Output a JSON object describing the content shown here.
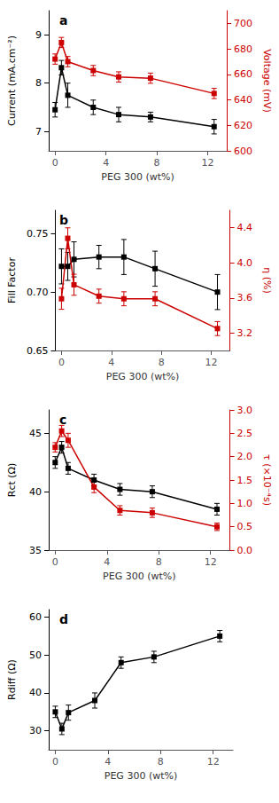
{
  "chart_data": [
    {
      "type": "line",
      "title": "a",
      "x": [
        0,
        0.5,
        1,
        3,
        5,
        7.5,
        12.5
      ],
      "xlabel": "PEG 300 (wt%)",
      "xlim": [
        -0.5,
        13.5
      ],
      "xticks": [
        0,
        4,
        8,
        12
      ],
      "ylabel": "Current (mA.cm⁻²)",
      "ylim": [
        6.6,
        9.5
      ],
      "yticks": [
        7,
        8,
        9
      ],
      "y2label": "Voltage (mV)",
      "y2lim": [
        600,
        710
      ],
      "y2ticks": [
        600,
        620,
        640,
        660,
        680,
        700
      ],
      "grid": false,
      "series": [
        {
          "color": "#000000",
          "marker": "square",
          "values": [
            7.45,
            8.32,
            7.75,
            7.5,
            7.35,
            7.3,
            7.1
          ],
          "yerr": [
            0.15,
            0.15,
            0.25,
            0.15,
            0.15,
            0.1,
            0.15
          ]
        },
        {
          "color": "#cc0000",
          "marker": "square",
          "axis": "y2",
          "values": [
            672,
            685,
            670,
            663,
            658,
            657,
            645
          ],
          "yerr": [
            4,
            4,
            4,
            4,
            4,
            4,
            4
          ]
        }
      ]
    },
    {
      "type": "line",
      "title": "b",
      "x": [
        0,
        0.5,
        1,
        3,
        5,
        7.5,
        12.5
      ],
      "xlabel": "PEG 300 (wt%)",
      "xlim": [
        -0.5,
        13.5
      ],
      "xticks": [
        0,
        4,
        8,
        12
      ],
      "ylabel": "Fill Factor",
      "ylim": [
        0.65,
        0.77
      ],
      "yticks": [
        0.65,
        {
          "value": 0.7,
          "label": "0.70"
        },
        0.75
      ],
      "y2label": "η (%)",
      "y2lim": [
        3.0,
        4.6
      ],
      "y2ticks": [
        3.2,
        3.6,
        {
          "value": 4.0,
          "label": "4.0"
        },
        4.4
      ],
      "grid": false,
      "series": [
        {
          "color": "#000000",
          "marker": "square",
          "values": [
            0.722,
            0.722,
            0.728,
            0.73,
            0.73,
            0.72,
            0.7
          ],
          "yerr": [
            0.015,
            0.012,
            0.015,
            0.01,
            0.015,
            0.015,
            0.015
          ]
        },
        {
          "color": "#cc0000",
          "marker": "square",
          "axis": "y2",
          "values": [
            3.59,
            4.28,
            3.75,
            3.62,
            3.59,
            3.59,
            3.25
          ],
          "yerr": [
            0.12,
            0.12,
            0.12,
            0.08,
            0.08,
            0.08,
            0.08
          ]
        }
      ]
    },
    {
      "type": "line",
      "title": "c",
      "x": [
        0,
        0.5,
        1,
        3,
        5,
        7.5,
        12.5
      ],
      "xlabel": "PEG 300 (wt%)",
      "xlim": [
        -0.5,
        13.5
      ],
      "xticks": [
        0,
        4,
        8,
        12
      ],
      "ylabel": "Rct (Ω)",
      "ylim": [
        35,
        47
      ],
      "yticks": [
        35,
        40,
        45
      ],
      "y2label": "τ (×10⁻⁴s)",
      "y2lim": [
        0.0,
        3.0
      ],
      "y2ticks": [
        {
          "value": 0.0,
          "label": "0.0"
        },
        0.5,
        {
          "value": 1.0,
          "label": "1.0"
        },
        1.5,
        {
          "value": 2.0,
          "label": "2.0"
        },
        2.5,
        {
          "value": 3.0,
          "label": "3.0"
        }
      ],
      "grid": false,
      "series": [
        {
          "color": "#000000",
          "marker": "square",
          "values": [
            42.5,
            43.8,
            42.0,
            41.0,
            40.2,
            40.0,
            38.5
          ],
          "yerr": [
            0.5,
            0.5,
            0.5,
            0.5,
            0.5,
            0.5,
            0.5
          ]
        },
        {
          "color": "#cc0000",
          "marker": "square",
          "axis": "y2",
          "values": [
            2.2,
            2.55,
            2.35,
            1.35,
            0.85,
            0.8,
            0.5
          ],
          "yerr": [
            0.1,
            0.12,
            0.15,
            0.12,
            0.1,
            0.1,
            0.08
          ]
        }
      ]
    },
    {
      "type": "line",
      "title": "d",
      "x": [
        0,
        0.5,
        1,
        3,
        5,
        7.5,
        12.5
      ],
      "xlabel": "PEG 300 (wt%)",
      "xlim": [
        -0.5,
        13.5
      ],
      "xticks": [
        0,
        4,
        8,
        12
      ],
      "ylabel": "Rdiff (Ω)",
      "ylim": [
        25,
        62
      ],
      "yticks": [
        30,
        40,
        50,
        60
      ],
      "grid": false,
      "series": [
        {
          "color": "#000000",
          "marker": "square",
          "values": [
            35.0,
            30.5,
            34.8,
            38.0,
            48.0,
            49.5,
            55.0
          ],
          "yerr": [
            1.5,
            1.5,
            2.0,
            2.0,
            1.5,
            1.5,
            1.5
          ]
        }
      ]
    }
  ]
}
